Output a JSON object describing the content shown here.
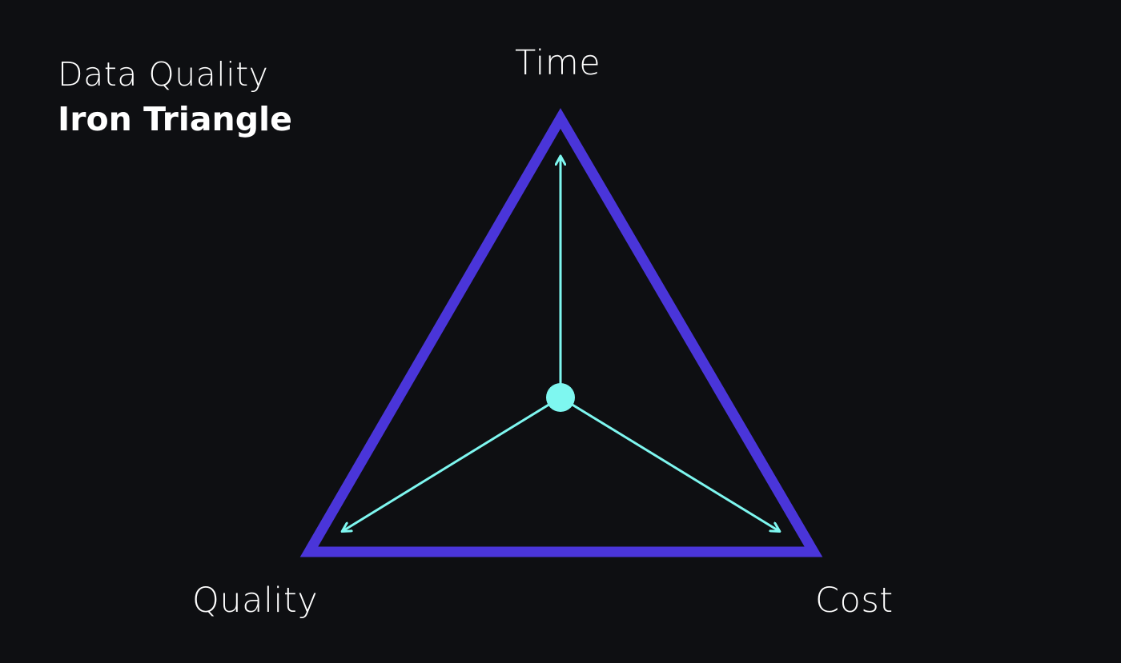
{
  "title": {
    "line1": "Data Quality",
    "line2": "Iron Triangle"
  },
  "vertices": {
    "top": "Time",
    "bottom_left": "Quality",
    "bottom_right": "Cost"
  },
  "colors": {
    "background": "#0e0f12",
    "triangle": "#4a35d9",
    "arrows": "#7ef7f0",
    "text": "#ffffff"
  }
}
